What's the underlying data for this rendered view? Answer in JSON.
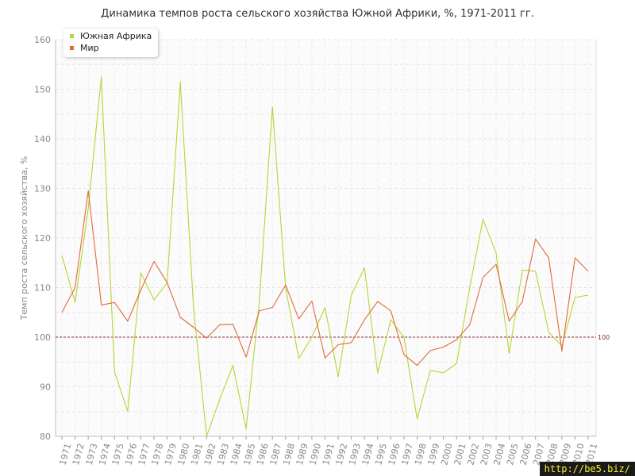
{
  "title": "Динамика темпов роста сельского хозяйства Южной Африки, %, 1971-2011 гг.",
  "watermark": "http://be5.biz/",
  "reference_label": "100",
  "colors": {
    "south_africa": "#b7d534",
    "world": "#e06a3a",
    "reference": "#8b2b2b"
  },
  "chart_data": {
    "type": "line",
    "title": "Динамика темпов роста сельского хозяйства Южной Африки, %, 1971-2011 гг.",
    "xlabel": "",
    "ylabel": "Темп роста сельского хозяйства, %",
    "ylim": [
      80,
      160
    ],
    "yticks": [
      80,
      90,
      100,
      110,
      120,
      130,
      140,
      150,
      160
    ],
    "grid": true,
    "legend_position": "top-left",
    "reference_line": 100,
    "categories": [
      "1971",
      "1972",
      "1973",
      "1974",
      "1975",
      "1976",
      "1977",
      "1978",
      "1979",
      "1980",
      "1981",
      "1982",
      "1983",
      "1984",
      "1985",
      "1986",
      "1987",
      "1988",
      "1989",
      "1990",
      "1991",
      "1992",
      "1993",
      "1994",
      "1995",
      "1996",
      "1997",
      "1998",
      "1999",
      "2000",
      "2001",
      "2002",
      "2003",
      "2004",
      "2005",
      "2006",
      "2007",
      "2008",
      "2009",
      "2010",
      "2011"
    ],
    "series": [
      {
        "name": "Южная Африка",
        "color": "#b7d534",
        "values": [
          116.5,
          107.0,
          126.0,
          152.5,
          93.0,
          85.0,
          113.0,
          107.5,
          111.0,
          151.5,
          106.0,
          80.0,
          87.5,
          94.3,
          81.5,
          107.0,
          146.5,
          110.0,
          95.7,
          100.0,
          106.0,
          92.0,
          108.5,
          114.0,
          92.8,
          103.5,
          100.0,
          83.5,
          93.3,
          92.8,
          94.7,
          110.0,
          123.8,
          117.0,
          96.7,
          113.5,
          113.3,
          101.0,
          98.2,
          108.0,
          108.5
        ]
      },
      {
        "name": "Мир",
        "color": "#e06a3a",
        "values": [
          105.0,
          110.0,
          129.5,
          106.5,
          107.0,
          103.2,
          109.5,
          115.3,
          111.0,
          104.0,
          102.0,
          99.8,
          102.5,
          102.6,
          96.0,
          105.3,
          106.0,
          110.5,
          103.7,
          107.3,
          95.8,
          98.5,
          98.9,
          103.5,
          107.2,
          105.3,
          96.5,
          94.3,
          97.3,
          98.0,
          99.5,
          102.5,
          112.0,
          114.7,
          103.2,
          107.2,
          119.8,
          116.0,
          97.2,
          116.0,
          113.3
        ]
      }
    ]
  }
}
